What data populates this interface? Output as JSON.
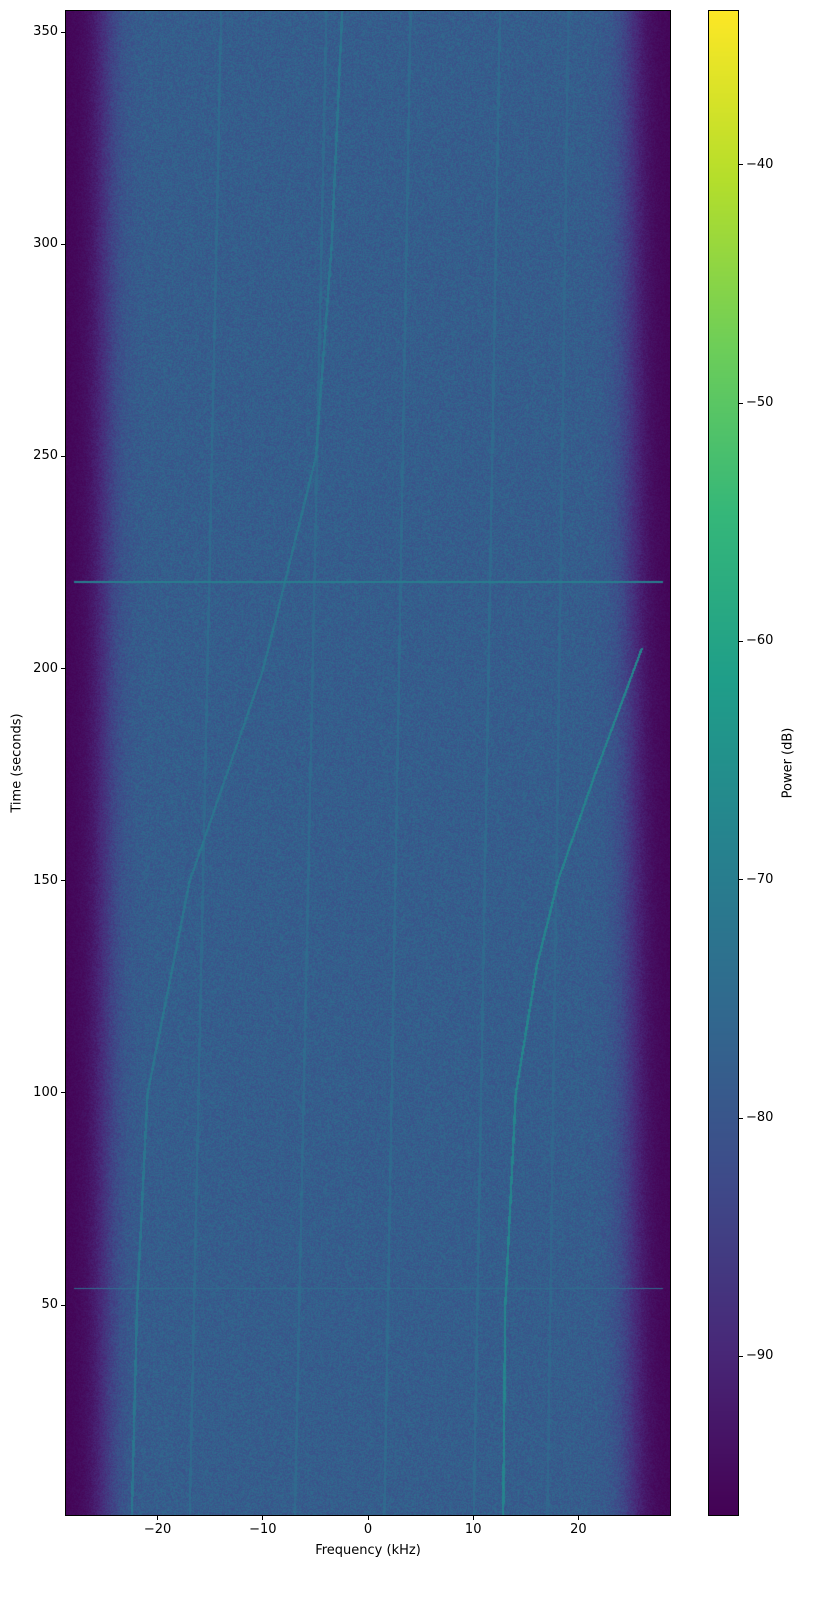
{
  "chart_data": {
    "type": "heatmap",
    "subtype": "spectrogram",
    "title": "",
    "xlabel": "Frequency (kHz)",
    "ylabel": "Time (seconds)",
    "xlim": [
      -28.8,
      28.8
    ],
    "ylim": [
      0.3,
      355.2
    ],
    "xticks": [
      -20,
      -10,
      0,
      10,
      20
    ],
    "xtick_labels": [
      "−20",
      "−10",
      "0",
      "10",
      "20"
    ],
    "yticks": [
      50,
      100,
      150,
      200,
      250,
      300,
      350
    ],
    "ytick_labels": [
      "50",
      "100",
      "150",
      "200",
      "250",
      "300",
      "350"
    ],
    "grid": false,
    "colormap": "viridis",
    "colorbar": {
      "label": "Power (dB)",
      "range": [
        -96.7,
        -33.5
      ],
      "ticks": [
        -90,
        -80,
        -70,
        -60,
        -50,
        -40
      ],
      "tick_labels": [
        "−90",
        "−80",
        "−70",
        "−60",
        "−50",
        "−40"
      ]
    },
    "noise_floor_db": -78,
    "passband_edge_khz": 25,
    "out_of_band_db": -96,
    "traces": [
      {
        "t": [
          0,
          50,
          100,
          150,
          200,
          250,
          300,
          355
        ],
        "f": [
          -22.5,
          -22,
          -21,
          -17,
          -10,
          -5,
          -3.5,
          -2.5
        ],
        "db": -72
      },
      {
        "t": [
          0,
          50,
          100,
          130,
          150,
          175,
          205
        ],
        "f": [
          12.8,
          13,
          14,
          16,
          18,
          21.5,
          26
        ],
        "db": -68
      },
      {
        "t": [
          0,
          355
        ],
        "f": [
          -17,
          -14
        ],
        "db": -75
      },
      {
        "t": [
          0,
          355
        ],
        "f": [
          -7,
          -4
        ],
        "db": -75
      },
      {
        "t": [
          0,
          355
        ],
        "f": [
          1.5,
          4
        ],
        "db": -75
      },
      {
        "t": [
          0,
          355
        ],
        "f": [
          10,
          12.5
        ],
        "db": -75
      },
      {
        "t": [
          0,
          355
        ],
        "f": [
          17,
          19
        ],
        "db": -76
      }
    ],
    "horizontal_lines": [
      {
        "t": 220.5,
        "db": -70
      },
      {
        "t": 54,
        "db": -74
      }
    ]
  }
}
